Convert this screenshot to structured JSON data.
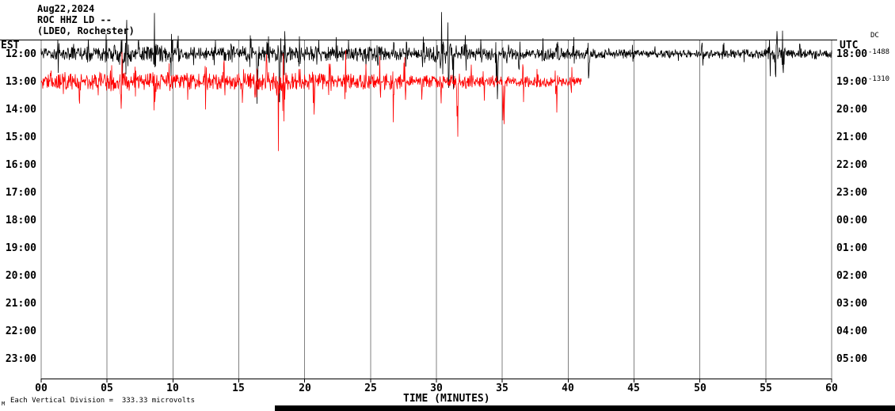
{
  "header": {
    "date": "Aug22,2024",
    "station": "ROC HHZ LD --",
    "location": "(LDEO, Rochester)"
  },
  "annotations": {
    "dc_header": "DC",
    "dc_offset_trace1": "-1488",
    "dc_offset_trace2": "-1310",
    "scale_note": "Each Vertical Division =  333.33 microvolts",
    "corner_mark": "M"
  },
  "chart_data": {
    "type": "line",
    "title": "ROC HHZ LD -- (LDEO, Rochester) Aug22,2024 helicorder",
    "xlabel": "TIME (MINUTES)",
    "xlim": [
      0,
      60
    ],
    "x_tick_labels": [
      "00",
      "05",
      "10",
      "15",
      "20",
      "25",
      "30",
      "35",
      "40",
      "45",
      "50",
      "55",
      "60"
    ],
    "left_axis_label": "EST",
    "right_axis_label": "UTC",
    "left_tick_labels": [
      "12:00",
      "13:00",
      "14:00",
      "15:00",
      "16:00",
      "17:00",
      "18:00",
      "19:00",
      "20:00",
      "21:00",
      "22:00",
      "23:00"
    ],
    "right_tick_labels": [
      "18:00",
      "19:00",
      "20:00",
      "21:00",
      "22:00",
      "23:00",
      "00:00",
      "01:00",
      "02:00",
      "03:00",
      "04:00",
      "05:00"
    ],
    "grid": true,
    "scale_per_division": "333.33 microvolts",
    "traces": [
      {
        "est": "12:00",
        "utc": "18:00",
        "row": 0,
        "color": "#000000",
        "dc_offset": -1488,
        "start_min": 0,
        "end_min": 60,
        "seed": 12345,
        "amp_profile": [
          [
            0,
            7
          ],
          [
            3,
            8
          ],
          [
            5,
            9
          ],
          [
            6,
            14
          ],
          [
            7,
            10
          ],
          [
            9,
            11
          ],
          [
            10,
            9
          ],
          [
            12,
            8
          ],
          [
            14,
            9
          ],
          [
            16,
            11
          ],
          [
            17,
            10
          ],
          [
            18,
            11
          ],
          [
            19,
            9
          ],
          [
            20,
            10
          ],
          [
            22,
            9
          ],
          [
            24,
            9
          ],
          [
            26,
            10
          ],
          [
            28,
            8
          ],
          [
            29,
            9
          ],
          [
            30,
            13
          ],
          [
            31,
            13
          ],
          [
            32,
            10
          ],
          [
            33,
            9
          ],
          [
            35,
            8
          ],
          [
            37,
            7
          ],
          [
            39,
            8
          ],
          [
            41,
            7
          ],
          [
            43,
            6
          ],
          [
            45,
            6
          ],
          [
            47,
            5
          ],
          [
            49,
            5
          ],
          [
            51,
            6
          ],
          [
            53,
            5
          ],
          [
            55,
            7
          ],
          [
            56,
            10
          ],
          [
            57,
            6
          ],
          [
            59,
            6
          ],
          [
            60,
            7
          ]
        ],
        "spikes": [
          [
            1.3,
            20
          ],
          [
            2.4,
            16
          ],
          [
            3.6,
            14
          ],
          [
            4.9,
            22
          ],
          [
            6.1,
            58
          ],
          [
            6.5,
            35
          ],
          [
            7.4,
            20
          ],
          [
            8.6,
            55
          ],
          [
            9.9,
            30
          ],
          [
            10.4,
            24
          ],
          [
            11.6,
            16
          ],
          [
            13.2,
            22
          ],
          [
            14.4,
            16
          ],
          [
            15.9,
            28
          ],
          [
            16.4,
            90,
            -1
          ],
          [
            17.2,
            35
          ],
          [
            18.1,
            75,
            -1
          ],
          [
            18.5,
            30
          ],
          [
            19.6,
            20
          ],
          [
            21.0,
            26
          ],
          [
            22.4,
            16
          ],
          [
            23.3,
            20
          ],
          [
            24.6,
            16
          ],
          [
            25.5,
            24
          ],
          [
            26.8,
            16
          ],
          [
            27.7,
            20
          ],
          [
            29.0,
            16
          ],
          [
            30.4,
            55
          ],
          [
            30.9,
            40
          ],
          [
            31.3,
            60,
            -1
          ],
          [
            32.2,
            24
          ],
          [
            33.4,
            18
          ],
          [
            34.6,
            65,
            -1
          ],
          [
            35.4,
            20
          ],
          [
            36.3,
            18
          ],
          [
            38.1,
            22
          ],
          [
            39.2,
            16
          ],
          [
            40.4,
            18
          ],
          [
            41.6,
            50,
            -1
          ],
          [
            43.1,
            12
          ],
          [
            44.9,
            10
          ],
          [
            46.6,
            10
          ],
          [
            48.3,
            10
          ],
          [
            50.2,
            16
          ],
          [
            51.8,
            10
          ],
          [
            53.4,
            10
          ],
          [
            55.3,
            30
          ],
          [
            55.8,
            52
          ],
          [
            56.3,
            30
          ],
          [
            57.6,
            14
          ],
          [
            58.8,
            12
          ]
        ]
      },
      {
        "est": "13:00",
        "utc": "19:00",
        "row": 1,
        "color": "#ff0000",
        "dc_offset": -1310,
        "start_min": 0,
        "end_min": 41,
        "seed": 67890,
        "amp_profile": [
          [
            0,
            9
          ],
          [
            2,
            10
          ],
          [
            4,
            11
          ],
          [
            6,
            12
          ],
          [
            8,
            11
          ],
          [
            10,
            10
          ],
          [
            12,
            11
          ],
          [
            14,
            10
          ],
          [
            16,
            12
          ],
          [
            18,
            12
          ],
          [
            20,
            11
          ],
          [
            22,
            10
          ],
          [
            24,
            10
          ],
          [
            26,
            11
          ],
          [
            28,
            9
          ],
          [
            30,
            8
          ],
          [
            32,
            9
          ],
          [
            34,
            8
          ],
          [
            36,
            7
          ],
          [
            38,
            7
          ],
          [
            40,
            6
          ],
          [
            41,
            5
          ]
        ],
        "spikes": [
          [
            0.8,
            24
          ],
          [
            1.7,
            20
          ],
          [
            2.9,
            22
          ],
          [
            4.4,
            30
          ],
          [
            5.3,
            20
          ],
          [
            6.1,
            34
          ],
          [
            7.2,
            26
          ],
          [
            8.6,
            40
          ],
          [
            9.7,
            24
          ],
          [
            11.1,
            22
          ],
          [
            12.5,
            32
          ],
          [
            13.9,
            24
          ],
          [
            15.3,
            26
          ],
          [
            16.3,
            38
          ],
          [
            17.1,
            30
          ],
          [
            18.0,
            130,
            -1
          ],
          [
            18.4,
            60
          ],
          [
            19.6,
            26
          ],
          [
            20.7,
            40
          ],
          [
            21.9,
            26
          ],
          [
            23.1,
            32
          ],
          [
            24.6,
            24
          ],
          [
            25.7,
            30
          ],
          [
            26.7,
            48
          ],
          [
            27.6,
            38
          ],
          [
            28.9,
            22
          ],
          [
            30.4,
            28
          ],
          [
            31.6,
            95,
            -1
          ],
          [
            32.7,
            24
          ],
          [
            33.6,
            22
          ],
          [
            35.1,
            85,
            -1
          ],
          [
            36.6,
            28
          ],
          [
            37.7,
            22
          ],
          [
            39.1,
            45,
            -1
          ],
          [
            40.3,
            20
          ]
        ]
      }
    ]
  }
}
